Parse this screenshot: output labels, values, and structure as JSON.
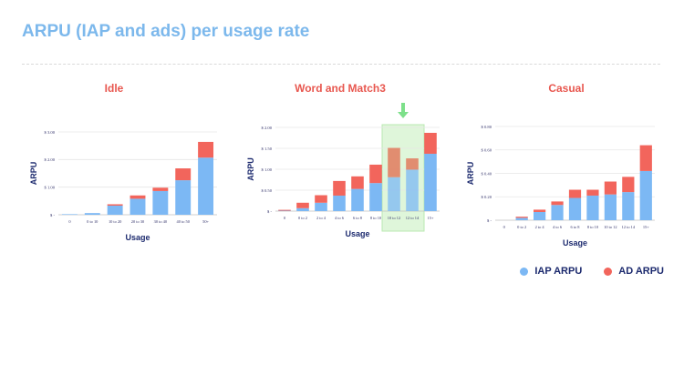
{
  "slide": {
    "title": "ARPU (IAP and ads) per usage rate"
  },
  "legend": {
    "iap_label": "IAP ARPU",
    "ad_label": "AD ARPU",
    "iap_color": "#7cb8f4",
    "ad_color": "#f2655c"
  },
  "chart_data": [
    {
      "type": "bar",
      "stacked": true,
      "title": "Idle",
      "xlabel": "Usage",
      "ylabel": "ARPU",
      "categories": [
        "0",
        "0 to 10",
        "10 to 20",
        "20 to 30",
        "30 to 40",
        "40 to 50",
        "50+"
      ],
      "yticks": [
        "$ -",
        "$ 1.00",
        "$ 2.00",
        "$ 3.00"
      ],
      "ylim": [
        0,
        3
      ],
      "grid": true,
      "series": [
        {
          "name": "IAP ARPU",
          "values": [
            0.02,
            0.06,
            0.33,
            0.58,
            0.86,
            1.25,
            2.07
          ]
        },
        {
          "name": "AD ARPU",
          "values": [
            0.0,
            0.0,
            0.05,
            0.12,
            0.12,
            0.43,
            0.57
          ]
        }
      ]
    },
    {
      "type": "bar",
      "stacked": true,
      "title": "Word and Match3",
      "xlabel": "Usage",
      "ylabel": "ARPU",
      "categories": [
        "0",
        "0 to 2",
        "2 to 4",
        "4 to 6",
        "6 to 8",
        "8 to 10",
        "10 to 12",
        "12 to 14",
        "15+"
      ],
      "yticks": [
        "$ -",
        "$ 0.50",
        "$ 1.00",
        "$ 1.50",
        "$ 2.00"
      ],
      "ylim": [
        0,
        2
      ],
      "grid": true,
      "highlight_categories": [
        "10 to 12",
        "12 to 14"
      ],
      "series": [
        {
          "name": "IAP ARPU",
          "values": [
            0.01,
            0.07,
            0.2,
            0.37,
            0.53,
            0.67,
            0.81,
            0.99,
            1.37
          ]
        },
        {
          "name": "AD ARPU",
          "values": [
            0.02,
            0.13,
            0.18,
            0.35,
            0.3,
            0.44,
            0.7,
            0.27,
            0.5
          ]
        }
      ]
    },
    {
      "type": "bar",
      "stacked": true,
      "title": "Casual",
      "xlabel": "Usage",
      "ylabel": "ARPU",
      "categories": [
        "0",
        "0 to 2",
        "2 to 4",
        "4 to 6",
        "6 to 8",
        "8 to 10",
        "10 to 12",
        "12 to 14",
        "15+"
      ],
      "yticks": [
        "$ -",
        "$ 0.20",
        "$ 0.40",
        "$ 0.60",
        "$ 0.80"
      ],
      "ylim": [
        0,
        0.8
      ],
      "grid": true,
      "series": [
        {
          "name": "IAP ARPU",
          "values": [
            0.0,
            0.02,
            0.07,
            0.13,
            0.19,
            0.21,
            0.22,
            0.24,
            0.42
          ]
        },
        {
          "name": "AD ARPU",
          "values": [
            0.0,
            0.01,
            0.02,
            0.03,
            0.07,
            0.05,
            0.11,
            0.13,
            0.22
          ]
        }
      ]
    }
  ]
}
